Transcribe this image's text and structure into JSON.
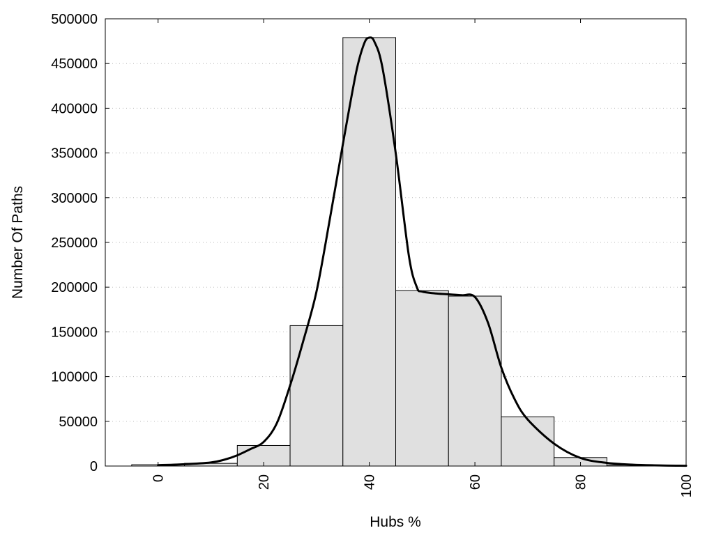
{
  "chart_data": {
    "type": "bar",
    "title": "",
    "xlabel": "Hubs %",
    "ylabel": "Number Of Paths",
    "xlim": [
      -10,
      100
    ],
    "ylim": [
      0,
      500000
    ],
    "x_ticks": [
      "0",
      "20",
      "40",
      "60",
      "80",
      "100"
    ],
    "x_tick_values": [
      0,
      20,
      40,
      60,
      80,
      100
    ],
    "y_ticks": [
      "0",
      "50000",
      "100000",
      "150000",
      "200000",
      "250000",
      "300000",
      "350000",
      "400000",
      "450000",
      "500000"
    ],
    "y_tick_values": [
      0,
      50000,
      100000,
      150000,
      200000,
      250000,
      300000,
      350000,
      400000,
      450000,
      500000
    ],
    "grid": "horizontal dotted",
    "bin_width": 10,
    "bins": [
      {
        "center": 0,
        "value": 1500
      },
      {
        "center": 10,
        "value": 3000
      },
      {
        "center": 20,
        "value": 23000
      },
      {
        "center": 30,
        "value": 157000
      },
      {
        "center": 40,
        "value": 479000
      },
      {
        "center": 50,
        "value": 196000
      },
      {
        "center": 60,
        "value": 190000
      },
      {
        "center": 70,
        "value": 55000
      },
      {
        "center": 80,
        "value": 9500
      },
      {
        "center": 90,
        "value": 1000
      }
    ],
    "curve": {
      "x": [
        0,
        5,
        10,
        12.5,
        15,
        17.5,
        20,
        22.5,
        25,
        27.5,
        30,
        32.5,
        35,
        37.5,
        39,
        40,
        41,
        42.5,
        45,
        47.5,
        49,
        50,
        52.5,
        55,
        57.5,
        60,
        62.5,
        65,
        67.5,
        70,
        75,
        80,
        85,
        90,
        95,
        100
      ],
      "y": [
        1000,
        2000,
        4000,
        7000,
        12000,
        19000,
        27000,
        48000,
        90000,
        140000,
        195000,
        275000,
        360000,
        440000,
        472000,
        479000,
        474000,
        445000,
        350000,
        235000,
        200000,
        195000,
        193000,
        192000,
        191000,
        189000,
        160000,
        110000,
        75000,
        52000,
        25000,
        9000,
        3500,
        1500,
        700,
        300
      ]
    },
    "colors": {
      "bar_fill": "#e0e0e0",
      "bar_stroke": "#000000",
      "curve": "#000000",
      "grid": "#b9b9b9"
    }
  }
}
